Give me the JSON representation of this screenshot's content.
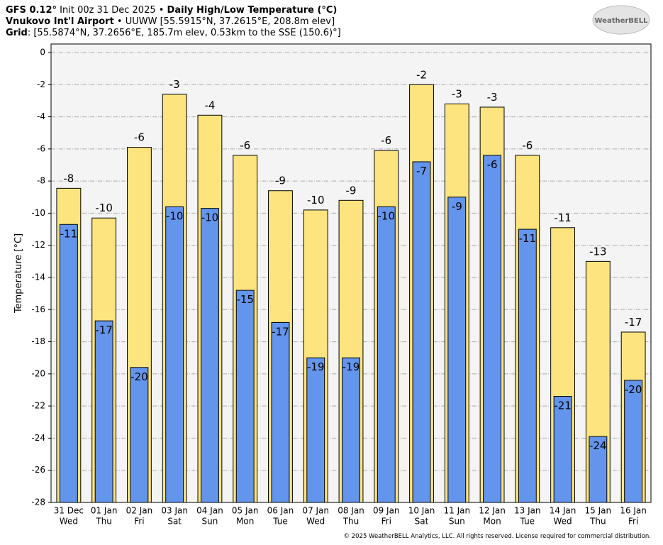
{
  "chart_data": {
    "type": "bar",
    "title": [
      "GFS 0.12°",
      " Init 00z 31 Dec 2025 • ",
      "Daily High/Low Temperature (°C)"
    ],
    "subtitle": [
      "Vnukovo Int'l Airport",
      " • UUWW [55.5915°N, 37.2615°E, 208.8m elev]"
    ],
    "grid_info": [
      "Grid",
      ": [55.5874°N, 37.2656°E, 185.7m elev, 0.53km to the SSE (150.6)°]"
    ],
    "logo": "WeatherBELL",
    "footer": "© 2025 WeatherBELL Analytics, LLC. All rights reserved. License required for commercial distribution.",
    "ylabel": "Temperature [°C]",
    "categories": [
      "31 Dec",
      "01 Jan",
      "02 Jan",
      "03 Jan",
      "04 Jan",
      "05 Jan",
      "06 Jan",
      "07 Jan",
      "08 Jan",
      "09 Jan",
      "10 Jan",
      "11 Jan",
      "12 Jan",
      "13 Jan",
      "14 Jan",
      "15 Jan",
      "16 Jan"
    ],
    "weekdays": [
      "Wed",
      "Thu",
      "Fri",
      "Sat",
      "Sun",
      "Mon",
      "Tue",
      "Wed",
      "Thu",
      "Fri",
      "Sat",
      "Sun",
      "Mon",
      "Tue",
      "Wed",
      "Thu",
      "Fri"
    ],
    "series": [
      {
        "color": "#fde47f",
        "values": [
          -8.45,
          -10.3,
          -5.9,
          -2.6,
          -3.9,
          -6.4,
          -8.6,
          -9.8,
          -9.2,
          -6.1,
          -2.0,
          -3.2,
          -3.4,
          -6.4,
          -10.9,
          -13.0,
          -17.4
        ],
        "value_labels": [
          "-8",
          "-10",
          "-6",
          "-3",
          "-4",
          "-6",
          "-9",
          "-10",
          "-9",
          "-6",
          "-2",
          "-3",
          "-3",
          "-6",
          "-11",
          "-13",
          "-17"
        ]
      },
      {
        "color": "#6495ed",
        "values": [
          -10.7,
          -16.7,
          -19.6,
          -9.6,
          -9.7,
          -14.8,
          -16.8,
          -19.0,
          -19.0,
          -9.6,
          -6.8,
          -9.0,
          -6.4,
          -11.0,
          -21.4,
          -23.9,
          -20.4
        ],
        "value_labels": [
          "-11",
          "-17",
          "-20",
          "-10",
          "-10",
          "-15",
          "-17",
          "-19",
          "-19",
          "-10",
          "-7",
          "-9",
          "-6",
          "-11",
          "-21",
          "-24",
          "-20"
        ]
      }
    ],
    "ylim": [
      -28,
      0
    ],
    "yticks": [
      -28,
      -26,
      -24,
      -22,
      -20,
      -18,
      -16,
      -14,
      -12,
      -10,
      -8,
      -6,
      -4,
      -2,
      0
    ],
    "grid": true
  }
}
